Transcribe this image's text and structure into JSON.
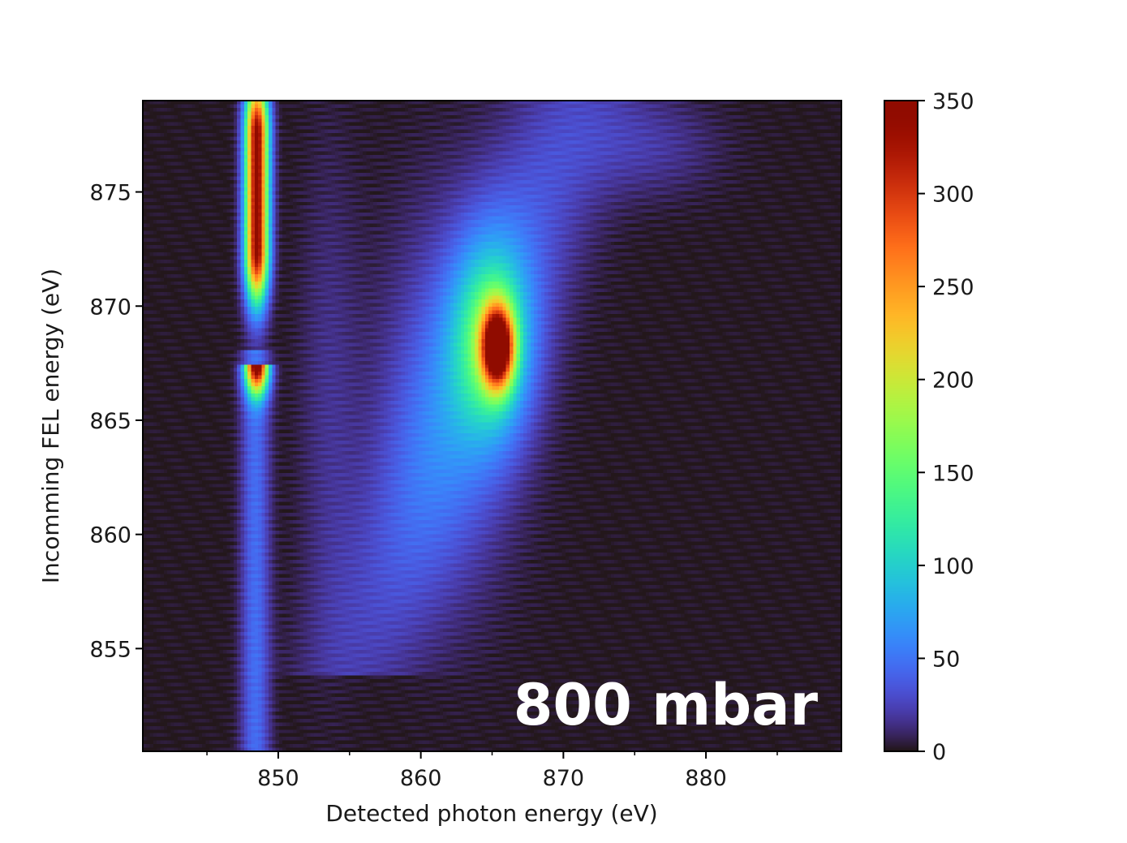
{
  "chart_data": {
    "type": "heatmap",
    "title": "",
    "xlabel": "Detected photon energy (eV)",
    "ylabel": "Incomming FEL energy (eV)",
    "xlim": [
      840.5,
      889.5
    ],
    "ylim": [
      850.5,
      879
    ],
    "x_ticks": [
      850,
      860,
      870,
      880
    ],
    "x_tick_labels": [
      "850",
      "860",
      "870",
      "880"
    ],
    "y_ticks": [
      855,
      860,
      865,
      870,
      875
    ],
    "y_tick_labels": [
      "855",
      "860",
      "865",
      "870",
      "875"
    ],
    "annotation": "800 mbar",
    "colorbar": {
      "colormap": "turbo",
      "vmin": 0,
      "vmax": 350,
      "ticks": [
        0,
        50,
        100,
        150,
        200,
        250,
        300,
        350
      ],
      "tick_labels": [
        "0",
        "50",
        "100",
        "150",
        "200",
        "250",
        "300",
        "350"
      ]
    },
    "features": [
      {
        "x_center": 848.5,
        "y_range": [
          867.5,
          879
        ],
        "peak_y": 873,
        "peak_value": 350
      },
      {
        "x_center": 865.5,
        "y_center": 868.2,
        "peak_value": 330
      },
      {
        "x_center": 848.5,
        "y_range": [
          850.5,
          866
        ],
        "value_approx": 50
      },
      {
        "description_free": true,
        "from": [
          857,
          858
        ],
        "to": [
          873,
          878
        ],
        "value_approx": 40
      }
    ]
  }
}
